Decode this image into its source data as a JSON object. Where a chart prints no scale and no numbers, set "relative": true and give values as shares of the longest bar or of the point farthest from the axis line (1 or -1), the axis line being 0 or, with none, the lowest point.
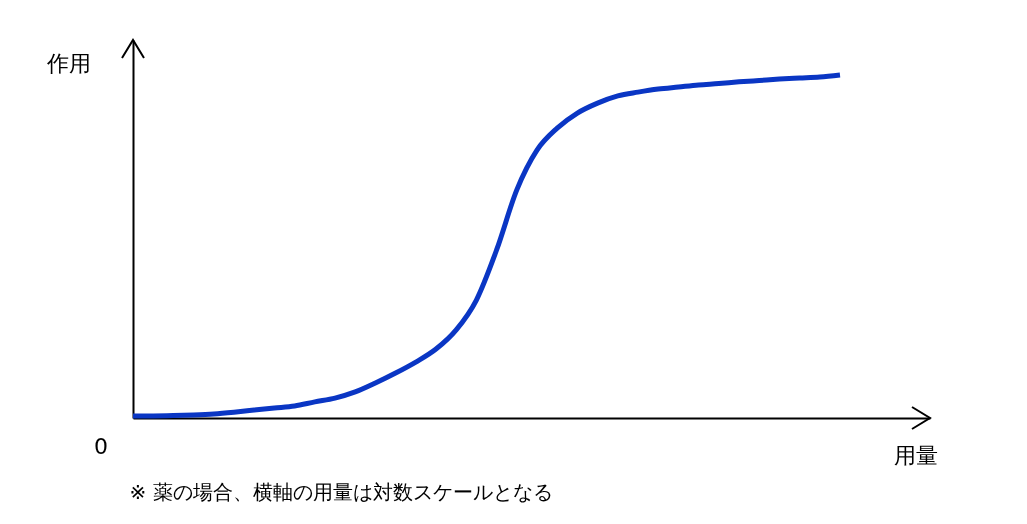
{
  "chart_data": {
    "type": "line",
    "relative": true,
    "xlabel": "用量",
    "ylabel": "作用",
    "categories": [
      null,
      null,
      null,
      null,
      null,
      null,
      null,
      null,
      null,
      null,
      null,
      null,
      null,
      null,
      null,
      null,
      null,
      null,
      null,
      null,
      null,
      null,
      null,
      null,
      null,
      null,
      null,
      null,
      null,
      null,
      null,
      null,
      null,
      null,
      null,
      null
    ],
    "series": [
      {
        "color": "#0a36c4",
        "values": [
          0.006,
          0.006,
          0.007,
          0.009,
          0.012,
          0.017,
          0.023,
          0.029,
          0.035,
          0.047,
          0.058,
          0.076,
          0.102,
          0.131,
          0.163,
          0.201,
          0.257,
          0.344,
          0.49,
          0.665,
          0.781,
          0.845,
          0.889,
          0.918,
          0.939,
          0.95,
          0.959,
          0.965,
          0.971,
          0.975,
          0.98,
          0.984,
          0.988,
          0.991,
          0.994,
          1
        ]
      }
    ],
    "annotations": [
      "0",
      "※ 薬の場合、横軸の用量は対数スケールとなる"
    ]
  }
}
